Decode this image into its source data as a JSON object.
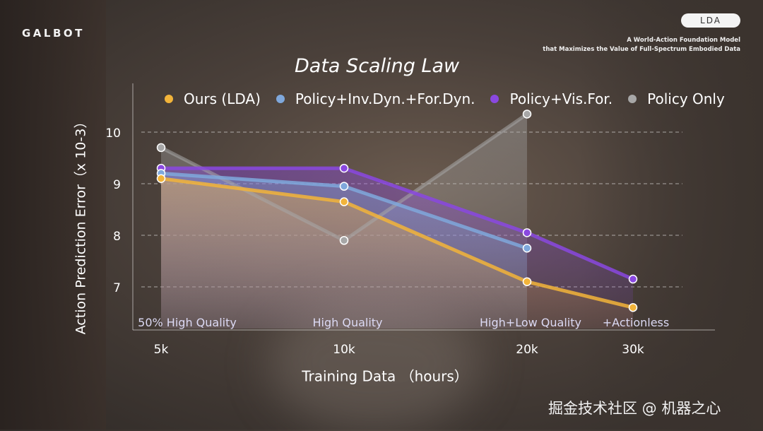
{
  "brand": {
    "logo": "GALBOT",
    "badge": "LDA"
  },
  "tagline": {
    "line1": "A World-Action Foundation Model",
    "line2": "that Maximizes the Value of Full-Spectrum Embodied Data"
  },
  "watermark": "掘金技术社区 @ 机器之心",
  "colors": {
    "ours": "#f2b43a",
    "inv_for": "#7fa8dc",
    "vis_for": "#8a48e0",
    "policy_only": "#a7a7a7"
  },
  "chart_data": {
    "type": "line",
    "title": "Data Scaling Law",
    "xlabel": "Training Data （hours）",
    "ylabel": "Action Prediction Error（x 10-3）",
    "x": [
      "5k",
      "10k",
      "20k",
      "30k"
    ],
    "ylim": [
      6.4,
      10.6
    ],
    "yticks": [
      7,
      8,
      9,
      10
    ],
    "grid": "horizontal-dashed",
    "legend_position": "top",
    "annotations": [
      "50% High Quality",
      "High Quality",
      "High+Low Quality",
      "+Actionless"
    ],
    "series": [
      {
        "name": "Ours (LDA)",
        "color": "#f2b43a",
        "values": [
          9.1,
          8.65,
          7.1,
          6.6
        ]
      },
      {
        "name": "Policy+Inv.Dyn.+For.Dyn.",
        "color": "#7fa8dc",
        "values": [
          9.2,
          8.95,
          7.75,
          null
        ]
      },
      {
        "name": "Policy+Vis.For.",
        "color": "#8a48e0",
        "values": [
          9.3,
          9.3,
          8.05,
          7.15
        ]
      },
      {
        "name": "Policy Only",
        "color": "#a7a7a7",
        "values": [
          9.7,
          7.9,
          10.35,
          null
        ]
      }
    ]
  }
}
